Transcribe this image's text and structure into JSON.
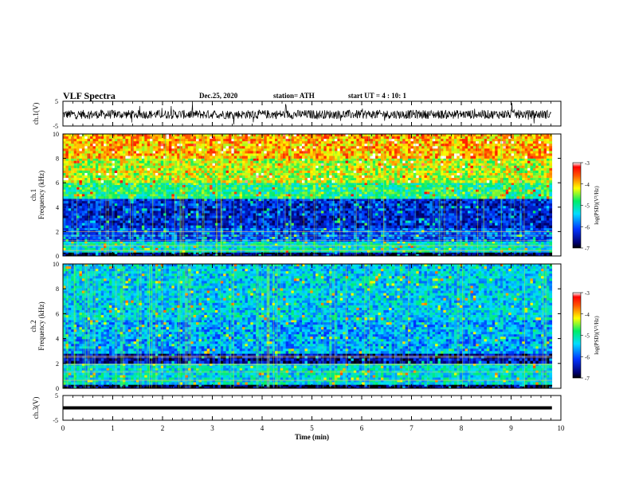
{
  "header": {
    "title": "VLF Spectra",
    "date": "Dec.25, 2020",
    "station": "station= ATH",
    "start": "start UT =  4 : 10: 1"
  },
  "chart_data": [
    {
      "type": "line",
      "panel": "ch1-waveform",
      "ylabel": "ch.1(V)",
      "ylim": [
        -5,
        5
      ],
      "yticks": [
        -5,
        5
      ],
      "xlim": [
        0,
        10
      ],
      "note_values": "noisy waveform fluctuating roughly between -2 and 2 V",
      "y_typical_range": [
        -2,
        2
      ]
    },
    {
      "type": "heatmap",
      "panel": "ch1-spectrogram",
      "ylabel": "ch.1\nFrequency (kHz)",
      "ylim": [
        0,
        10
      ],
      "yticks": [
        0,
        2,
        4,
        6,
        8,
        10
      ],
      "xlim": [
        0,
        10
      ],
      "colorbar": {
        "label": "log(PSD)(V²/Hz)",
        "range": [
          -7,
          -3
        ],
        "ticks": [
          -3,
          -4,
          -5,
          -6,
          -7
        ]
      },
      "bands": [
        {
          "f": [
            0,
            0.3
          ],
          "level": -6.8
        },
        {
          "f": [
            0.3,
            1.2
          ],
          "level": -5.2
        },
        {
          "f": [
            1.2,
            2.3
          ],
          "level": -6.0
        },
        {
          "f": [
            2.3,
            4.7
          ],
          "level": -6.3
        },
        {
          "f": [
            4.7,
            6.0
          ],
          "level": -4.9
        },
        {
          "f": [
            6.0,
            8.0
          ],
          "level": -4.3
        },
        {
          "f": [
            8.0,
            10.0
          ],
          "level": -3.9
        }
      ]
    },
    {
      "type": "heatmap",
      "panel": "ch2-spectrogram",
      "ylabel": "ch.2\nFrequency (kHz)",
      "ylim": [
        0,
        10
      ],
      "yticks": [
        0,
        2,
        4,
        6,
        8,
        10
      ],
      "xlim": [
        0,
        10
      ],
      "colorbar": {
        "label": "log(PSD)(V²/Hz)",
        "range": [
          -7,
          -3
        ],
        "ticks": [
          -3,
          -4,
          -5,
          -6,
          -7
        ]
      },
      "bands": [
        {
          "f": [
            0,
            0.3
          ],
          "level": -6.8
        },
        {
          "f": [
            0.3,
            2.0
          ],
          "level": -5.3
        },
        {
          "f": [
            2.0,
            2.8
          ],
          "level": -6.5
        },
        {
          "f": [
            2.8,
            5.5
          ],
          "level": -5.6
        },
        {
          "f": [
            5.5,
            10.0
          ],
          "level": -5.4
        }
      ]
    },
    {
      "type": "line",
      "panel": "ch3-waveform",
      "ylabel": "ch.3(V)",
      "ylim": [
        -5,
        5
      ],
      "yticks": [
        -5,
        5
      ],
      "xlim": [
        0,
        10
      ],
      "constant_value": 0,
      "xlabel": "Time (min)",
      "xticks": [
        0,
        1,
        2,
        3,
        4,
        5,
        6,
        7,
        8,
        9,
        10
      ]
    }
  ]
}
